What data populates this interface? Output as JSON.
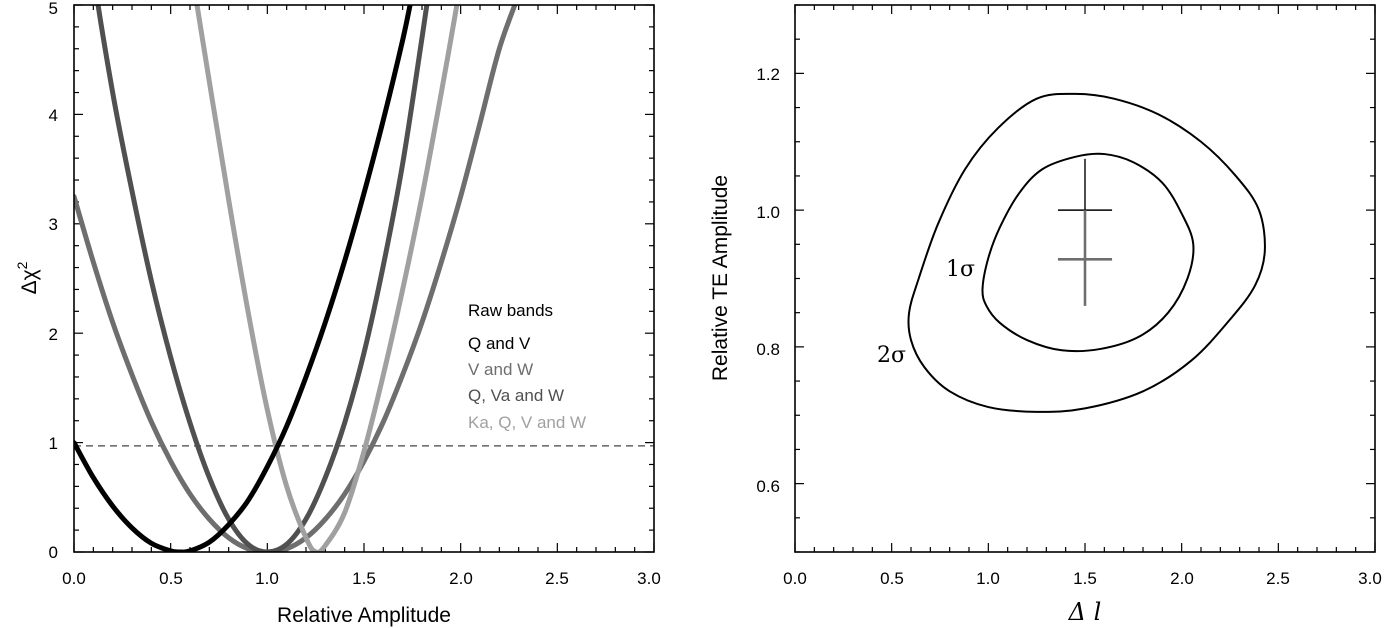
{
  "chart_data": [
    {
      "type": "line",
      "xlabel": "Relative Amplitude",
      "ylabel": "Δχ",
      "ylabel_superscript": "2",
      "xlim": [
        0,
        3
      ],
      "ylim": [
        0,
        5
      ],
      "xticks": [
        "0.0",
        "0.5",
        "1.0",
        "1.5",
        "2.0",
        "2.5",
        "3.0"
      ],
      "yticks": [
        "0",
        "1",
        "2",
        "3",
        "4",
        "5"
      ],
      "reference_line": {
        "y": 0.97,
        "style": "dashed"
      },
      "legend": {
        "title": "Raw bands",
        "position": "right",
        "entries": [
          "Q and V",
          "V and W",
          "Q, Va and W",
          "Ka, Q, V and W"
        ]
      },
      "series": [
        {
          "name": "Q and V",
          "color": "#000000",
          "x": [
            0,
            0.1,
            0.2,
            0.3,
            0.4,
            0.5,
            0.55,
            0.6,
            0.7,
            0.8,
            0.9,
            1.0,
            1.1,
            1.2,
            1.3,
            1.4,
            1.5,
            1.6,
            1.7,
            1.75,
            1.8
          ],
          "y": [
            1.0,
            0.68,
            0.42,
            0.22,
            0.08,
            0.01,
            0.0,
            0.01,
            0.09,
            0.25,
            0.47,
            0.78,
            1.15,
            1.6,
            2.1,
            2.66,
            3.28,
            3.95,
            4.68,
            5.1,
            5.5
          ]
        },
        {
          "name": "V and W",
          "color": "#6e6e6e",
          "x": [
            0,
            0.1,
            0.2,
            0.3,
            0.4,
            0.5,
            0.6,
            0.7,
            0.8,
            0.9,
            1.0,
            1.1,
            1.2,
            1.3,
            1.4,
            1.5,
            1.6,
            1.7,
            1.8,
            1.9,
            2.0,
            2.1,
            2.2,
            2.3,
            2.35
          ],
          "y": [
            3.25,
            2.65,
            2.1,
            1.62,
            1.19,
            0.83,
            0.53,
            0.3,
            0.13,
            0.03,
            0.0,
            0.03,
            0.13,
            0.3,
            0.53,
            0.83,
            1.19,
            1.62,
            2.1,
            2.65,
            3.25,
            3.92,
            4.6,
            5.1,
            5.4
          ]
        },
        {
          "name": "Q, Va and W",
          "color": "#505050",
          "x": [
            0.05,
            0.1,
            0.2,
            0.3,
            0.4,
            0.5,
            0.6,
            0.7,
            0.8,
            0.9,
            1.0,
            1.1,
            1.2,
            1.3,
            1.4,
            1.5,
            1.6,
            1.7,
            1.8,
            1.85
          ],
          "y": [
            6.2,
            5.3,
            4.2,
            3.3,
            2.48,
            1.78,
            1.18,
            0.68,
            0.3,
            0.07,
            0.0,
            0.07,
            0.3,
            0.68,
            1.18,
            1.82,
            2.62,
            3.55,
            4.7,
            5.3
          ]
        },
        {
          "name": "Ka, Q, V and W",
          "color": "#a0a0a0",
          "x": [
            0.6,
            0.7,
            0.8,
            0.9,
            1.0,
            1.1,
            1.2,
            1.25,
            1.3,
            1.4,
            1.5,
            1.6,
            1.7,
            1.8,
            1.9,
            2.0,
            2.05
          ],
          "y": [
            5.4,
            4.3,
            3.22,
            2.2,
            1.3,
            0.6,
            0.13,
            0.0,
            0.06,
            0.36,
            0.92,
            1.62,
            2.4,
            3.25,
            4.2,
            5.2,
            5.8
          ]
        }
      ]
    },
    {
      "type": "contour",
      "xlabel": "Δ l",
      "ylabel": "Relative TE Amplitude",
      "xlim": [
        0,
        3
      ],
      "ylim": [
        0.5,
        1.3
      ],
      "xticks": [
        "0.0",
        "0.5",
        "1.0",
        "1.5",
        "2.0",
        "2.5",
        "3.0"
      ],
      "yticks": [
        "0.6",
        "0.8",
        "1.0",
        "1.2"
      ],
      "contours": [
        {
          "label": "1σ",
          "points": [
            [
              0.97,
              0.885
            ],
            [
              1.0,
              0.93
            ],
            [
              1.06,
              0.975
            ],
            [
              1.16,
              1.025
            ],
            [
              1.28,
              1.06
            ],
            [
              1.45,
              1.078
            ],
            [
              1.6,
              1.082
            ],
            [
              1.75,
              1.07
            ],
            [
              1.9,
              1.04
            ],
            [
              2.0,
              0.995
            ],
            [
              2.06,
              0.95
            ],
            [
              2.03,
              0.9
            ],
            [
              1.93,
              0.85
            ],
            [
              1.78,
              0.815
            ],
            [
              1.58,
              0.797
            ],
            [
              1.38,
              0.795
            ],
            [
              1.2,
              0.81
            ],
            [
              1.06,
              0.835
            ],
            [
              0.99,
              0.86
            ]
          ]
        },
        {
          "label": "2σ",
          "points": [
            [
              0.59,
              0.85
            ],
            [
              0.64,
              0.9
            ],
            [
              0.74,
              0.98
            ],
            [
              0.88,
              1.06
            ],
            [
              1.05,
              1.12
            ],
            [
              1.25,
              1.163
            ],
            [
              1.45,
              1.17
            ],
            [
              1.65,
              1.163
            ],
            [
              1.88,
              1.14
            ],
            [
              2.1,
              1.1
            ],
            [
              2.28,
              1.05
            ],
            [
              2.4,
              1.0
            ],
            [
              2.43,
              0.94
            ],
            [
              2.38,
              0.89
            ],
            [
              2.25,
              0.84
            ],
            [
              2.05,
              0.78
            ],
            [
              1.8,
              0.735
            ],
            [
              1.5,
              0.71
            ],
            [
              1.25,
              0.705
            ],
            [
              1.0,
              0.712
            ],
            [
              0.8,
              0.735
            ],
            [
              0.67,
              0.77
            ],
            [
              0.6,
              0.81
            ]
          ]
        }
      ],
      "crosshairs": [
        {
          "x": 1.5,
          "y": 1.0,
          "y_low": 0.93,
          "y_high": 1.075,
          "x_half": 0.14,
          "color": "#000000"
        },
        {
          "x": 1.5,
          "y": 0.928,
          "y_low": 0.86,
          "y_high": 1.0,
          "x_half": 0.14,
          "color": "#6e6e6e"
        }
      ]
    }
  ]
}
